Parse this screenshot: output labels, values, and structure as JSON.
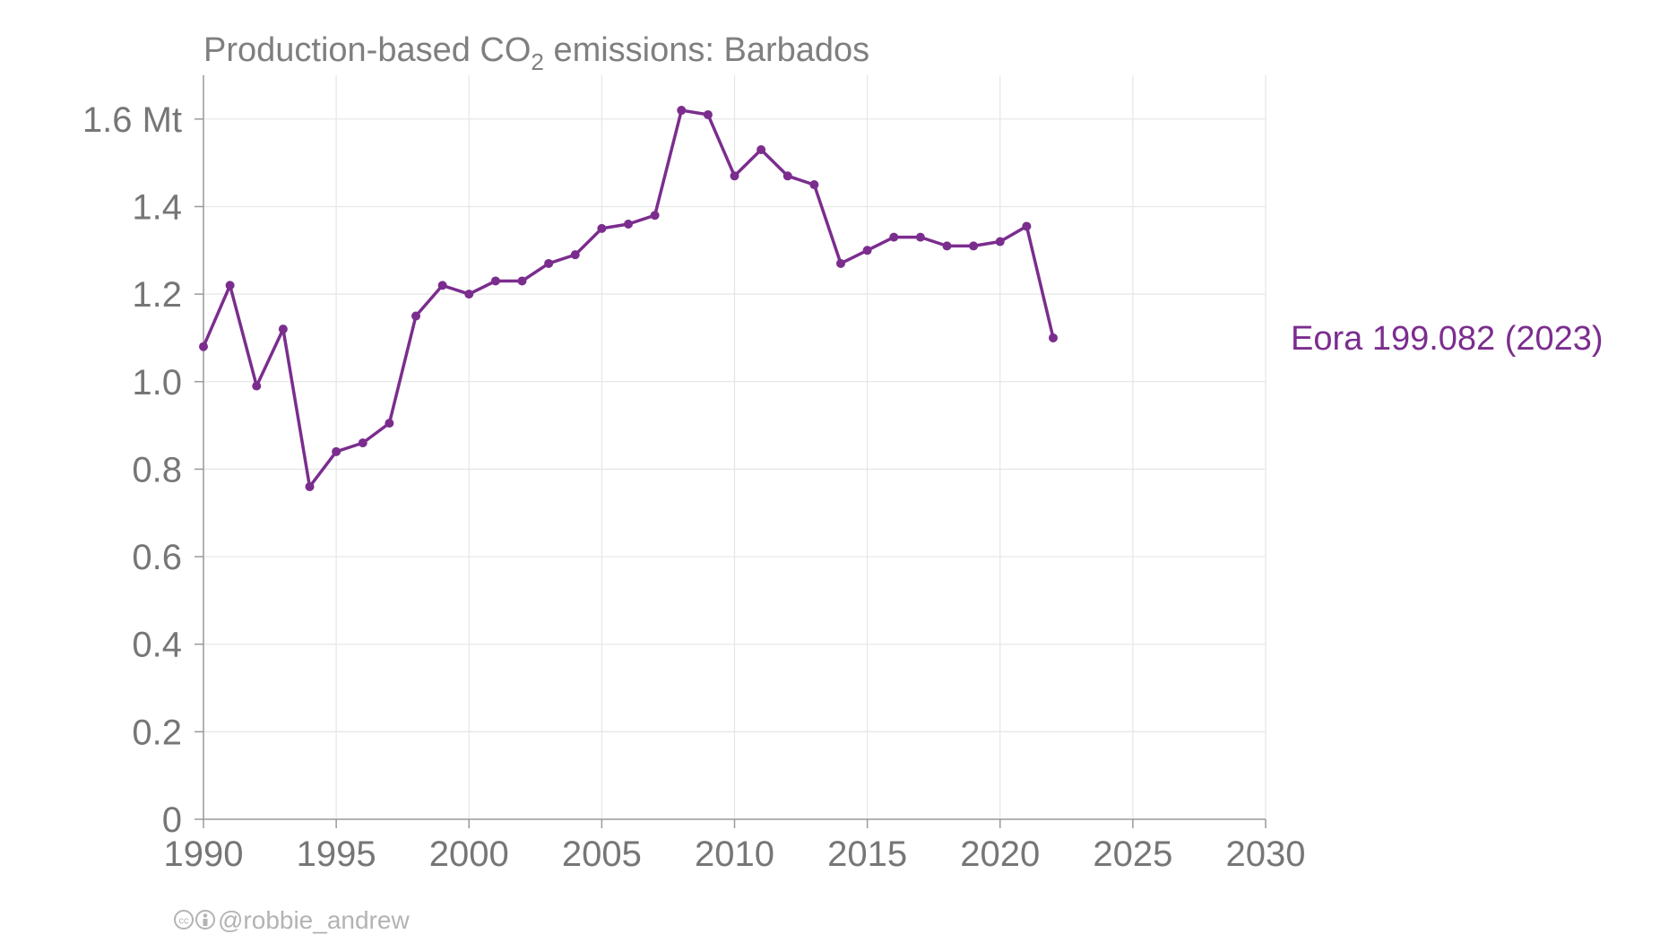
{
  "chart_data": {
    "type": "line",
    "title": {
      "before": "Production-based CO",
      "subscript": "2",
      "after": " emissions: Barbados"
    },
    "xlabel": "",
    "ylabel": "",
    "y_unit": "Mt",
    "xlim": [
      1990,
      2030
    ],
    "ylim": [
      0,
      1.7
    ],
    "x_ticks": [
      {
        "value": 1990,
        "label": "1990"
      },
      {
        "value": 1995,
        "label": "1995"
      },
      {
        "value": 2000,
        "label": "2000"
      },
      {
        "value": 2005,
        "label": "2005"
      },
      {
        "value": 2010,
        "label": "2010"
      },
      {
        "value": 2015,
        "label": "2015"
      },
      {
        "value": 2020,
        "label": "2020"
      },
      {
        "value": 2025,
        "label": "2025"
      },
      {
        "value": 2030,
        "label": "2030"
      }
    ],
    "y_ticks": [
      {
        "value": 0,
        "label": "0"
      },
      {
        "value": 0.2,
        "label": "0.2"
      },
      {
        "value": 0.4,
        "label": "0.4"
      },
      {
        "value": 0.6,
        "label": "0.6"
      },
      {
        "value": 0.8,
        "label": "0.8"
      },
      {
        "value": 1.0,
        "label": "1.0"
      },
      {
        "value": 1.2,
        "label": "1.2"
      },
      {
        "value": 1.4,
        "label": "1.4"
      },
      {
        "value": 1.6,
        "label": "1.6 Mt"
      }
    ],
    "grid": true,
    "series": [
      {
        "name": "Eora 199.082 (2023)",
        "color": "#7b2d8e",
        "x": [
          1990,
          1991,
          1992,
          1993,
          1994,
          1995,
          1996,
          1997,
          1998,
          1999,
          2000,
          2001,
          2002,
          2003,
          2004,
          2005,
          2006,
          2007,
          2008,
          2009,
          2010,
          2011,
          2012,
          2013,
          2014,
          2015,
          2016,
          2017,
          2018,
          2019,
          2020,
          2021,
          2022
        ],
        "y": [
          1.08,
          1.22,
          0.99,
          1.12,
          0.76,
          0.84,
          0.86,
          0.905,
          1.15,
          1.22,
          1.2,
          1.23,
          1.23,
          1.27,
          1.29,
          1.35,
          1.36,
          1.38,
          1.62,
          1.61,
          1.47,
          1.53,
          1.47,
          1.45,
          1.27,
          1.3,
          1.33,
          1.33,
          1.31,
          1.31,
          1.32,
          1.355,
          1.1
        ]
      }
    ]
  },
  "credit": {
    "icons": [
      "cc-icon",
      "by-icon"
    ],
    "handle": "@robbie_andrew"
  }
}
